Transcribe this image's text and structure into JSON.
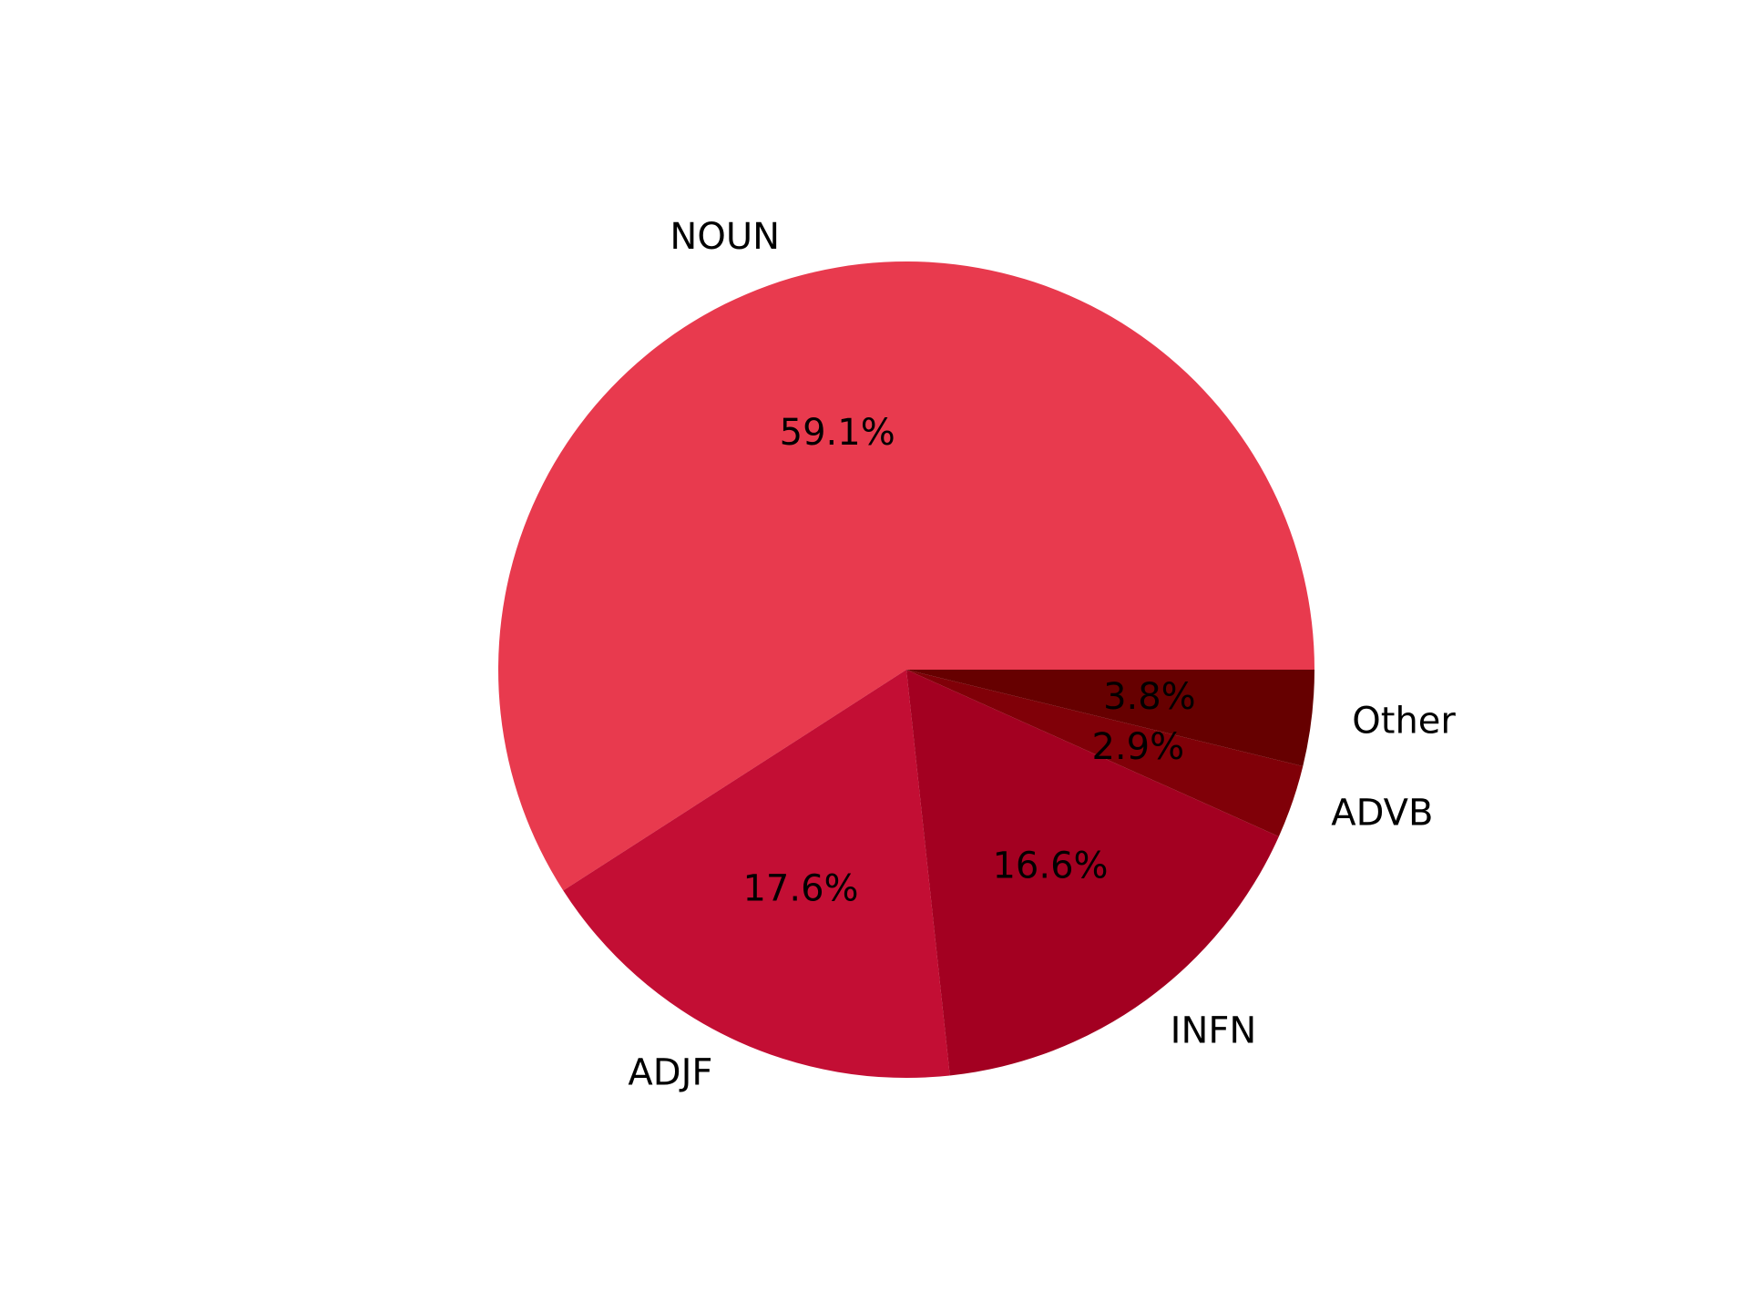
{
  "chart_data": {
    "type": "pie",
    "title": "",
    "start_angle_deg": 0,
    "direction": "counterclockwise",
    "slices": [
      {
        "label": "NOUN",
        "value": 59.1,
        "pct_text": "59.1%",
        "color": "#e83a4e"
      },
      {
        "label": "ADJF",
        "value": 17.6,
        "pct_text": "17.6%",
        "color": "#c30e34"
      },
      {
        "label": "INFN",
        "value": 16.6,
        "pct_text": "16.6%",
        "color": "#a30021"
      },
      {
        "label": "ADVB",
        "value": 2.9,
        "pct_text": "2.9%",
        "color": "#800008"
      },
      {
        "label": "Other",
        "value": 3.8,
        "pct_text": "3.8%",
        "color": "#660000"
      }
    ]
  }
}
